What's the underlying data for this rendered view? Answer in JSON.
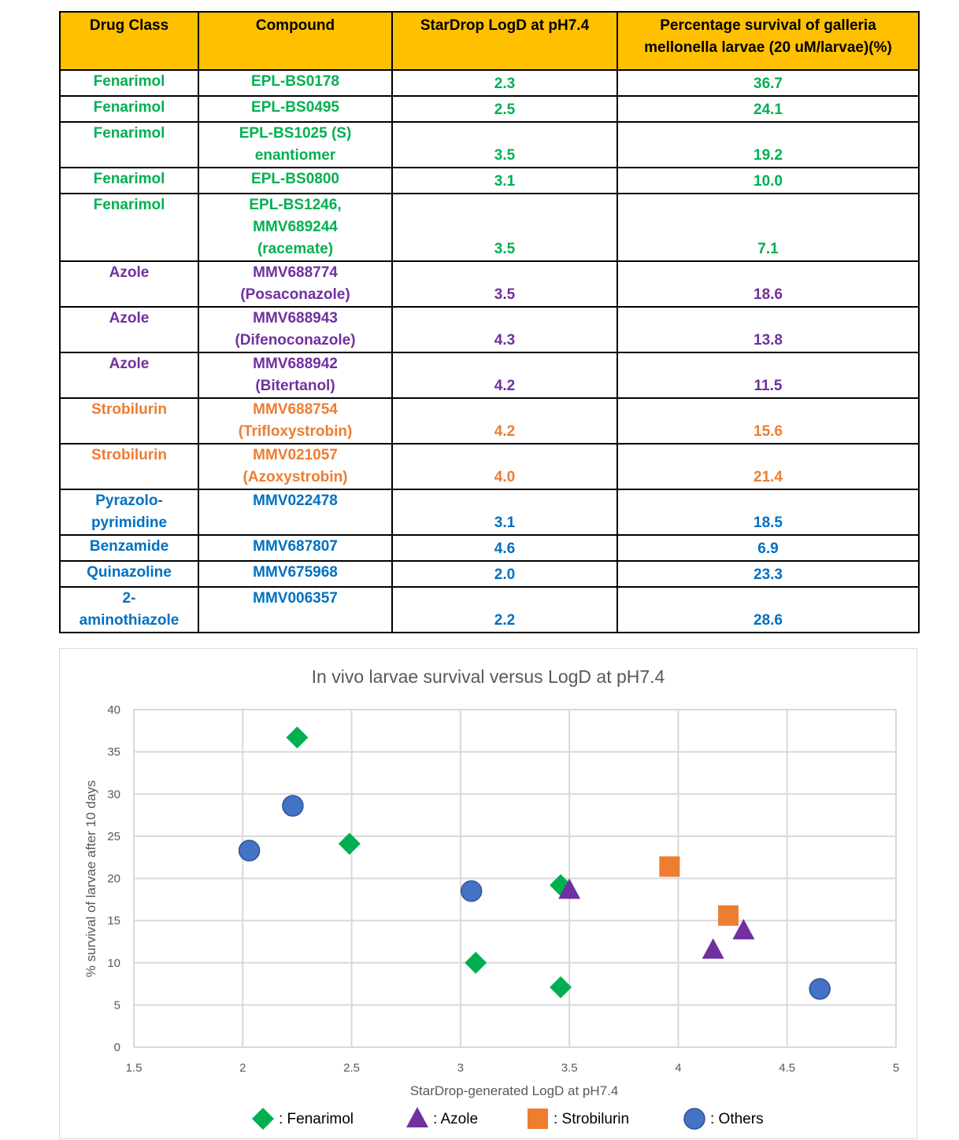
{
  "table": {
    "headers": [
      "Drug Class",
      "Compound",
      "StarDrop LogD at pH7.4",
      "Percentage survival of galleria mellonella larvae (20 uM/larvae)(%)"
    ],
    "rows": [
      {
        "cls": "Fenarimol",
        "group": "fenarimol",
        "compound": [
          "EPL-BS0178"
        ],
        "logd": "2.3",
        "survival": "36.7"
      },
      {
        "cls": "Fenarimol",
        "group": "fenarimol",
        "compound": [
          "EPL-BS0495"
        ],
        "logd": "2.5",
        "survival": "24.1"
      },
      {
        "cls": "Fenarimol",
        "group": "fenarimol",
        "compound": [
          "EPL-BS1025 (S)",
          "enantiomer"
        ],
        "logd": "3.5",
        "survival": "19.2"
      },
      {
        "cls": "Fenarimol",
        "group": "fenarimol",
        "compound": [
          "EPL-BS0800"
        ],
        "logd": "3.1",
        "survival": "10.0"
      },
      {
        "cls": "Fenarimol",
        "group": "fenarimol",
        "compound": [
          "EPL-BS1246,",
          "MMV689244",
          "(racemate)"
        ],
        "logd": "3.5",
        "survival": "7.1"
      },
      {
        "cls": "Azole",
        "group": "azole",
        "compound": [
          "MMV688774",
          "(Posaconazole)"
        ],
        "logd": "3.5",
        "survival": "18.6"
      },
      {
        "cls": "Azole",
        "group": "azole",
        "compound": [
          "MMV688943",
          "(Difenoconazole)"
        ],
        "logd": "4.3",
        "survival": "13.8"
      },
      {
        "cls": "Azole",
        "group": "azole",
        "compound": [
          "MMV688942",
          "(Bitertanol)"
        ],
        "logd": "4.2",
        "survival": "11.5"
      },
      {
        "cls": "Strobilurin",
        "group": "strobilurin",
        "compound": [
          "MMV688754",
          "(Trifloxystrobin)"
        ],
        "logd": "4.2",
        "survival": "15.6"
      },
      {
        "cls": "Strobilurin",
        "group": "strobilurin",
        "compound": [
          "MMV021057",
          "(Azoxystrobin)"
        ],
        "logd": "4.0",
        "survival": "21.4"
      },
      {
        "cls": "Pyrazolo-\npyrimidine",
        "group": "others",
        "compound": [
          "MMV022478"
        ],
        "logd": "3.1",
        "survival": "18.5"
      },
      {
        "cls": "Benzamide",
        "group": "others",
        "compound": [
          "MMV687807"
        ],
        "logd": "4.6",
        "survival": "6.9"
      },
      {
        "cls": "Quinazoline",
        "group": "others",
        "compound": [
          "MMV675968"
        ],
        "logd": "2.0",
        "survival": "23.3"
      },
      {
        "cls": "2-\naminothiazole",
        "group": "others",
        "compound": [
          "MMV006357"
        ],
        "logd": "2.2",
        "survival": "28.6"
      }
    ]
  },
  "chart_data": {
    "type": "scatter",
    "title": "In vivo larvae survival versus LogD at pH7.4",
    "xlabel": "StarDrop-generated LogD at pH7.4",
    "ylabel": "% survival of larvae after 10 days",
    "xlim": [
      1.5,
      5
    ],
    "ylim": [
      0,
      40
    ],
    "x_ticks": [
      "1.5",
      "2",
      "2.5",
      "3",
      "3.5",
      "4",
      "4.5",
      "5"
    ],
    "y_ticks": [
      "0",
      "5",
      "10",
      "15",
      "20",
      "25",
      "30",
      "35",
      "40"
    ],
    "grid": true,
    "legend_position": "bottom",
    "series": [
      {
        "name": ": Fenarimol",
        "marker": "diamond",
        "color": "#00b050",
        "points": [
          [
            2.25,
            36.7
          ],
          [
            2.49,
            24.1
          ],
          [
            3.46,
            19.2
          ],
          [
            3.07,
            10.0
          ],
          [
            3.46,
            7.1
          ]
        ]
      },
      {
        "name": ": Azole",
        "marker": "triangle",
        "color": "#7030a0",
        "points": [
          [
            3.5,
            18.6
          ],
          [
            4.3,
            13.8
          ],
          [
            4.16,
            11.5
          ]
        ]
      },
      {
        "name": ":  Strobilurin",
        "marker": "square",
        "color": "#ed7d31",
        "points": [
          [
            4.23,
            15.6
          ],
          [
            3.96,
            21.4
          ]
        ]
      },
      {
        "name": ":  Others",
        "marker": "circle",
        "color": "#4472c4",
        "points": [
          [
            3.05,
            18.5
          ],
          [
            4.65,
            6.9
          ],
          [
            2.03,
            23.3
          ],
          [
            2.23,
            28.6
          ]
        ]
      }
    ]
  }
}
